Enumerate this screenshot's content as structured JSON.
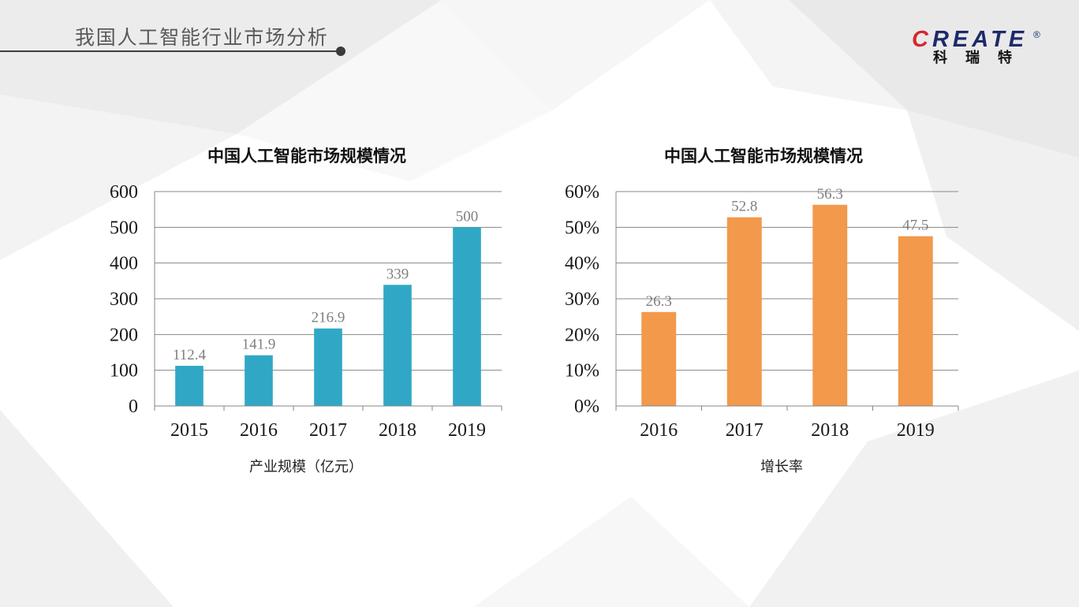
{
  "header": {
    "title": "我国人工智能行业市场分析"
  },
  "logo": {
    "wordmark": "CREATE",
    "registered": "®",
    "chinese": "科瑞特",
    "colors": {
      "accent": "#d42a2f",
      "navy": "#1d2a6b"
    }
  },
  "colors": {
    "gridline": "#878787",
    "data_label": "#7f7f7f",
    "header_text": "#595959"
  },
  "chart_data": [
    {
      "type": "bar",
      "title": "中国人工智能市场规模情况",
      "categories": [
        "2015",
        "2016",
        "2017",
        "2018",
        "2019"
      ],
      "series": [
        {
          "name": "产业规模（亿元）",
          "values": [
            112.4,
            141.9,
            216.9,
            339,
            500
          ],
          "color": "#30a8c5"
        }
      ],
      "ylim": [
        0,
        600
      ],
      "yticks": [
        0,
        100,
        200,
        300,
        400,
        500,
        600
      ],
      "ytick_labels": [
        "0",
        "100",
        "200",
        "300",
        "400",
        "500",
        "600"
      ],
      "data_labels": true,
      "grid": true,
      "legend": "bottom"
    },
    {
      "type": "bar",
      "title": "中国人工智能市场规模情况",
      "categories": [
        "2016",
        "2017",
        "2018",
        "2019"
      ],
      "series": [
        {
          "name": "增长率",
          "values": [
            26.3,
            52.8,
            56.3,
            47.5
          ],
          "color": "#f2994b"
        }
      ],
      "ylim": [
        0,
        60
      ],
      "yticks": [
        0,
        10,
        20,
        30,
        40,
        50,
        60
      ],
      "ytick_labels": [
        "0%",
        "10%",
        "20%",
        "30%",
        "40%",
        "50%",
        "60%"
      ],
      "data_labels": true,
      "grid": true,
      "legend": "bottom"
    }
  ]
}
